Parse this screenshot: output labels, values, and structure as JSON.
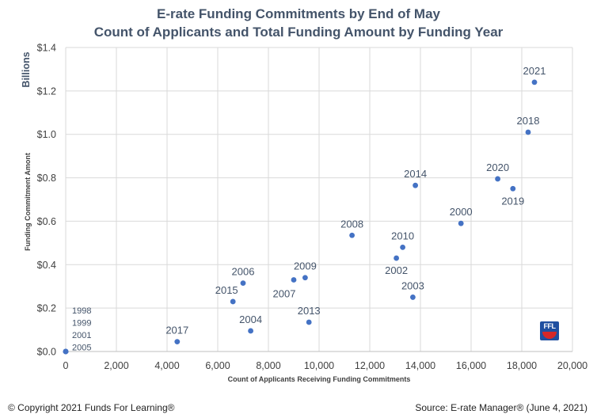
{
  "chart_data": {
    "type": "scatter",
    "title": "E-rate Funding Commitments by End of May",
    "subtitle": "Count of Applicants and Total Funding Amount by Funding Year",
    "xlabel": "Count of Applicants Receiving Funding Commitments",
    "ylabel": "Funding Commitment Amont",
    "yunit": "Billions",
    "xlim": [
      0,
      20000
    ],
    "ylim": [
      0,
      1.4
    ],
    "xticks": [
      0,
      2000,
      4000,
      6000,
      8000,
      10000,
      12000,
      14000,
      16000,
      18000,
      20000
    ],
    "xtick_labels": [
      "0",
      "2,000",
      "4,000",
      "6,000",
      "8,000",
      "10,000",
      "12,000",
      "14,000",
      "16,000",
      "18,000",
      "20,000"
    ],
    "yticks": [
      0,
      0.2,
      0.4,
      0.6,
      0.8,
      1.0,
      1.2,
      1.4
    ],
    "ytick_labels": [
      "$0.0",
      "$0.2",
      "$0.4",
      "$0.6",
      "$0.8",
      "$1.0",
      "$1.2",
      "$1.4"
    ],
    "grid": true,
    "legend": "none",
    "series_color": "#4472c4",
    "points": [
      {
        "label": "1998",
        "x": 0,
        "y": 0.0,
        "pos": "stack",
        "stack_index": 0
      },
      {
        "label": "1999",
        "x": 0,
        "y": 0.0,
        "pos": "stack",
        "stack_index": 1
      },
      {
        "label": "2001",
        "x": 0,
        "y": 0.0,
        "pos": "stack",
        "stack_index": 2
      },
      {
        "label": "2005",
        "x": 0,
        "y": 0.0,
        "pos": "stack",
        "stack_index": 3
      },
      {
        "label": "2017",
        "x": 4400,
        "y": 0.045,
        "pos": "above"
      },
      {
        "label": "2004",
        "x": 7300,
        "y": 0.095,
        "pos": "above"
      },
      {
        "label": "2013",
        "x": 9600,
        "y": 0.135,
        "pos": "above"
      },
      {
        "label": "2015",
        "x": 6600,
        "y": 0.23,
        "pos": "above-left"
      },
      {
        "label": "2006",
        "x": 7000,
        "y": 0.315,
        "pos": "above"
      },
      {
        "label": "2007",
        "x": 9000,
        "y": 0.33,
        "pos": "below-left"
      },
      {
        "label": "2009",
        "x": 9450,
        "y": 0.34,
        "pos": "above"
      },
      {
        "label": "2003",
        "x": 13700,
        "y": 0.25,
        "pos": "above"
      },
      {
        "label": "2002",
        "x": 13050,
        "y": 0.43,
        "pos": "below"
      },
      {
        "label": "2010",
        "x": 13300,
        "y": 0.48,
        "pos": "above"
      },
      {
        "label": "2008",
        "x": 11300,
        "y": 0.535,
        "pos": "above"
      },
      {
        "label": "2000",
        "x": 15600,
        "y": 0.59,
        "pos": "above"
      },
      {
        "label": "2014",
        "x": 13800,
        "y": 0.765,
        "pos": "above"
      },
      {
        "label": "2020",
        "x": 17050,
        "y": 0.795,
        "pos": "above"
      },
      {
        "label": "2019",
        "x": 17650,
        "y": 0.75,
        "pos": "below"
      },
      {
        "label": "2018",
        "x": 18250,
        "y": 1.01,
        "pos": "above"
      },
      {
        "label": "2021",
        "x": 18500,
        "y": 1.24,
        "pos": "above"
      }
    ]
  },
  "footer": {
    "copyright": "© Copyright 2021 Funds For Learning®",
    "source": "Source: E-rate Manager® (June 4, 2021)"
  },
  "logo": {
    "text": "FFL"
  }
}
